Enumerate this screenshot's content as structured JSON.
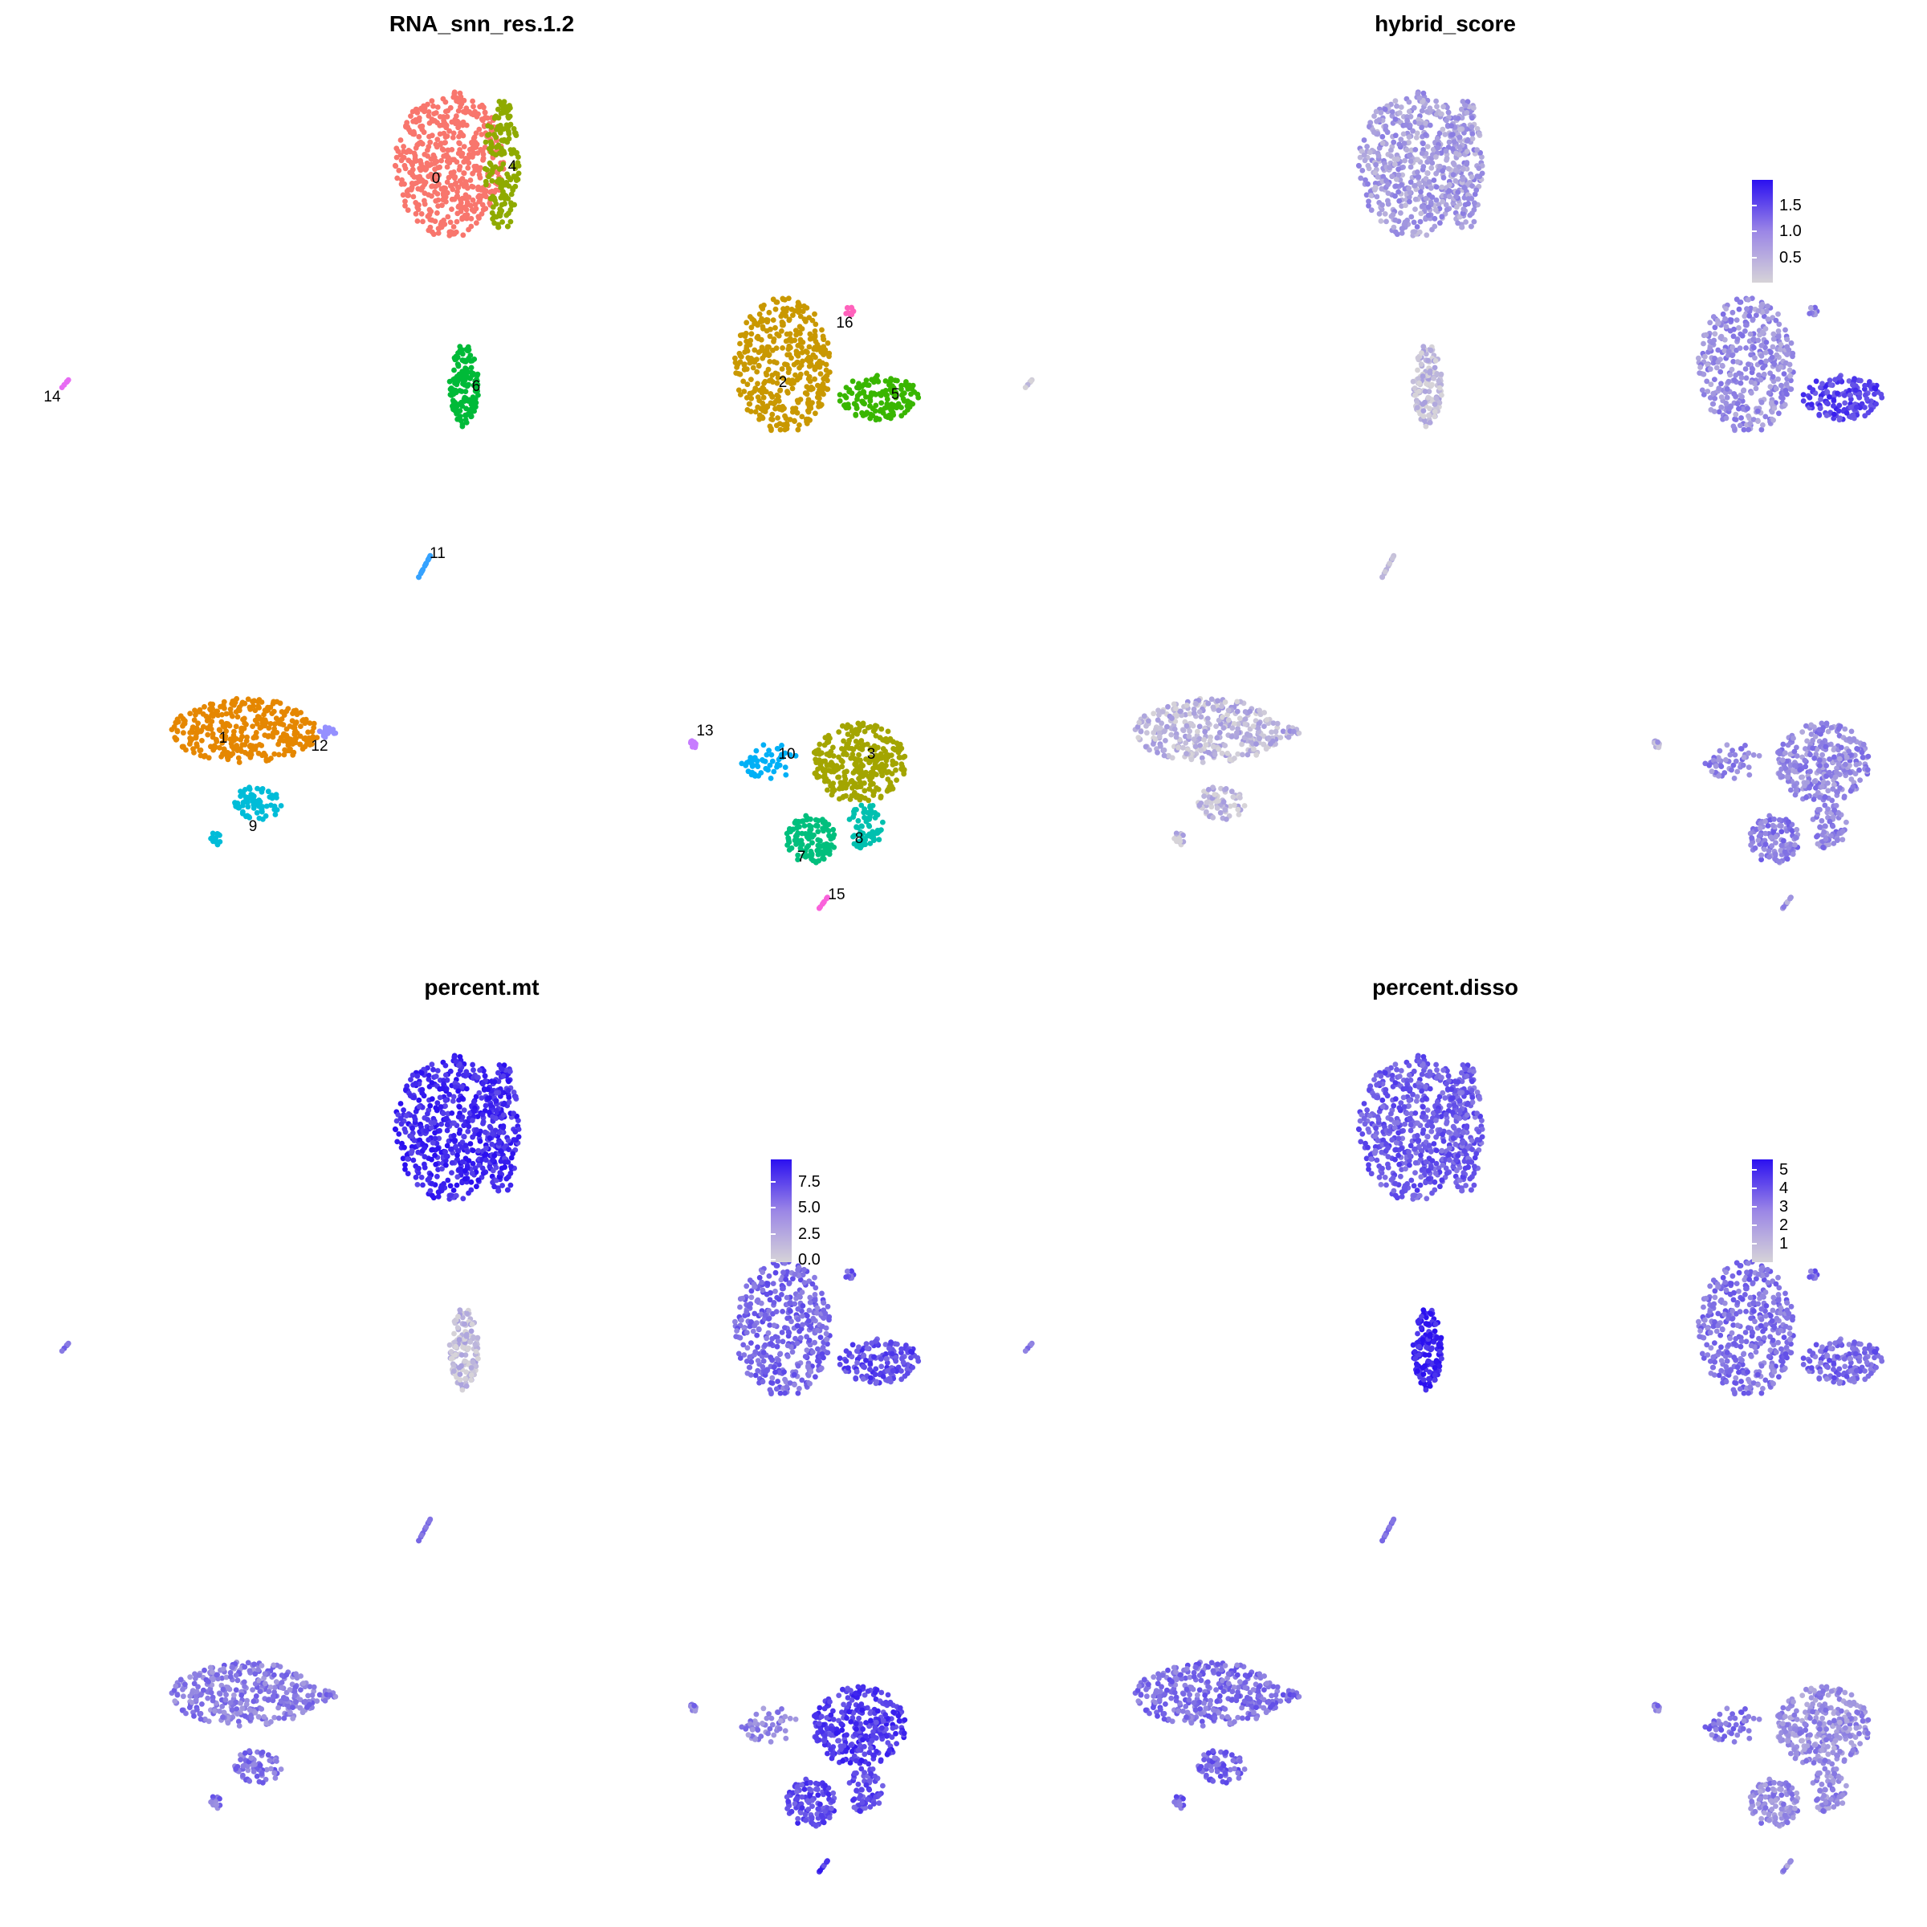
{
  "chart_data": [
    {
      "type": "scatter",
      "title": "RNA_snn_res.1.2",
      "coloring": "categorical",
      "cluster_labels": [
        "0",
        "1",
        "2",
        "3",
        "4",
        "5",
        "6",
        "7",
        "8",
        "9",
        "10",
        "11",
        "12",
        "13",
        "14",
        "15",
        "16"
      ],
      "cluster_colors": {
        "0": "#F8766D",
        "1": "#E58700",
        "2": "#C99800",
        "3": "#A3A500",
        "4": "#8FAA00",
        "5": "#39B600",
        "6": "#00BA38",
        "7": "#00BF7D",
        "8": "#00C0AF",
        "9": "#00BCD8",
        "10": "#00B0F6",
        "11": "#35A2FF",
        "12": "#9590FF",
        "13": "#C77CFF",
        "14": "#E76BF3",
        "15": "#FA62DB",
        "16": "#FF62BC"
      },
      "legend": "none"
    },
    {
      "type": "scatter",
      "title": "hybrid_score",
      "coloring": "continuous",
      "color_low": "#d6d3d8",
      "color_high": "#2b10f0",
      "legend_ticks": [
        "1.5",
        "1.0",
        "0.5"
      ],
      "legend": "right"
    },
    {
      "type": "scatter",
      "title": "percent.mt",
      "coloring": "continuous",
      "color_low": "#d6d3d8",
      "color_high": "#2b10f0",
      "legend_ticks": [
        "7.5",
        "5.0",
        "2.5",
        "0.0"
      ],
      "legend": "right"
    },
    {
      "type": "scatter",
      "title": "percent.disso",
      "coloring": "continuous",
      "color_low": "#d6d3d8",
      "color_high": "#2b10f0",
      "legend_ticks": [
        "5",
        "4",
        "3",
        "2",
        "1"
      ],
      "legend": "right"
    }
  ]
}
